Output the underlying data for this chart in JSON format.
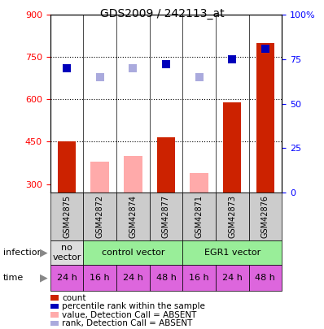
{
  "title": "GDS2009 / 242113_at",
  "samples": [
    "GSM42875",
    "GSM42872",
    "GSM42874",
    "GSM42877",
    "GSM42871",
    "GSM42873",
    "GSM42876"
  ],
  "bar_values": [
    450,
    null,
    null,
    465,
    null,
    590,
    800
  ],
  "bar_absent_values": [
    null,
    380,
    400,
    null,
    340,
    null,
    null
  ],
  "bar_color_present": "#cc2200",
  "bar_color_absent": "#ffaaaa",
  "rank_values": [
    70,
    65,
    70,
    72,
    65,
    75,
    81
  ],
  "rank_absent": [
    false,
    true,
    true,
    false,
    true,
    false,
    false
  ],
  "rank_color_present": "#0000bb",
  "rank_color_absent": "#aaaadd",
  "ylim_left": [
    270,
    900
  ],
  "ylim_right": [
    0,
    100
  ],
  "yticks_left": [
    300,
    450,
    600,
    750,
    900
  ],
  "yticks_right": [
    0,
    25,
    50,
    75,
    100
  ],
  "dotted_lines": [
    450,
    600,
    750
  ],
  "infection_groups": [
    {
      "label": "no\nvector",
      "start": 0,
      "end": 1,
      "color": "#dddddd"
    },
    {
      "label": "control vector",
      "start": 1,
      "end": 4,
      "color": "#99ee99"
    },
    {
      "label": "EGR1 vector",
      "start": 4,
      "end": 7,
      "color": "#99ee99"
    }
  ],
  "time_labels": [
    "24 h",
    "16 h",
    "24 h",
    "48 h",
    "16 h",
    "24 h",
    "48 h"
  ],
  "time_color": "#dd66dd",
  "legend_items": [
    {
      "color": "#cc2200",
      "label": "count"
    },
    {
      "color": "#0000bb",
      "label": "percentile rank within the sample"
    },
    {
      "color": "#ffaaaa",
      "label": "value, Detection Call = ABSENT"
    },
    {
      "color": "#aaaadd",
      "label": "rank, Detection Call = ABSENT"
    }
  ]
}
